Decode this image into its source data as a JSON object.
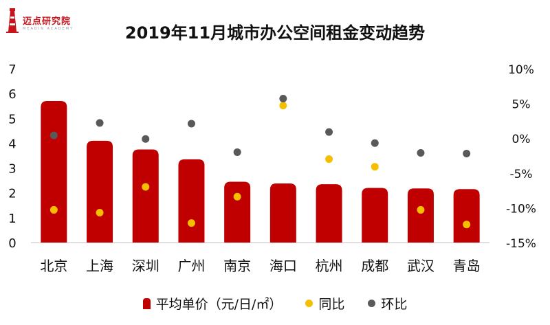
{
  "logo": {
    "text": "迈点研究院",
    "subtext": "MEADIN ACADEMY"
  },
  "chart_data": {
    "type": "bar",
    "title": "2019年11月城市办公空间租金变动趋势",
    "categories": [
      "北京",
      "上海",
      "深圳",
      "广州",
      "南京",
      "海口",
      "杭州",
      "成都",
      "武汉",
      "青岛"
    ],
    "series": [
      {
        "name": "平均单价（元/日/㎡）",
        "type": "bar",
        "axis": "left",
        "color": "#c00000",
        "values": [
          5.7,
          4.1,
          3.75,
          3.35,
          2.45,
          2.38,
          2.35,
          2.2,
          2.18,
          2.15
        ]
      },
      {
        "name": "同比",
        "type": "scatter",
        "axis": "right",
        "color": "#f5bf00",
        "values": [
          -10.3,
          -10.7,
          -7.0,
          -12.2,
          -8.4,
          4.7,
          -3.0,
          -4.1,
          -10.3,
          -12.4
        ]
      },
      {
        "name": "环比",
        "type": "scatter",
        "axis": "right",
        "color": "#595959",
        "values": [
          0.4,
          2.2,
          -0.1,
          2.1,
          -2.0,
          5.7,
          0.9,
          -0.7,
          -2.1,
          -2.2
        ]
      }
    ],
    "ylim": [
      0,
      7
    ],
    "yticks": [
      "0",
      "1",
      "2",
      "3",
      "4",
      "5",
      "6",
      "7"
    ],
    "y2lim": [
      -15,
      10
    ],
    "y2ticks": [
      "-15%",
      "-10%",
      "-5%",
      "0%",
      "5%",
      "10%"
    ],
    "legend_position": "bottom",
    "grid": false
  }
}
